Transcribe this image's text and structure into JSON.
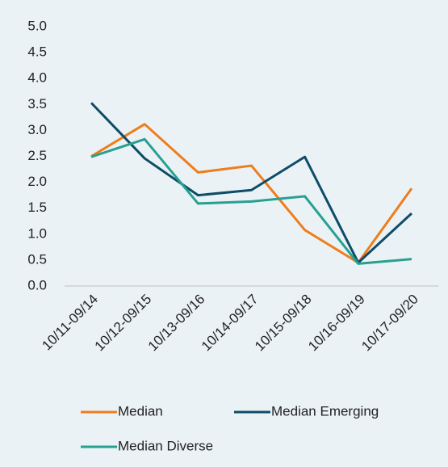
{
  "chart_data": {
    "type": "line",
    "categories": [
      "10/11-09/14",
      "10/12-09/15",
      "10/13-09/16",
      "10/14-09/17",
      "10/15-09/18",
      "10/16-09/19",
      "10/17-09/20"
    ],
    "series": [
      {
        "name": "Median",
        "color": "#ee7d1c",
        "values": [
          2.5,
          3.12,
          2.19,
          2.32,
          1.08,
          0.45,
          1.88
        ]
      },
      {
        "name": "Median Emerging",
        "color": "#0f4c68",
        "values": [
          3.53,
          2.46,
          1.75,
          1.85,
          2.49,
          0.45,
          1.4
        ]
      },
      {
        "name": "Median Diverse",
        "color": "#27a090",
        "values": [
          2.49,
          2.83,
          1.59,
          1.63,
          1.73,
          0.43,
          0.52
        ]
      }
    ],
    "ylim": [
      0,
      5
    ],
    "yticks": [
      {
        "value": 0,
        "label": "0.0"
      },
      0.5,
      {
        "value": 1,
        "label": "1.0"
      },
      1.5,
      {
        "value": 2,
        "label": "2.0"
      },
      2.5,
      {
        "value": 3,
        "label": "3.0"
      },
      3.5,
      {
        "value": 4,
        "label": "4.0"
      },
      4.5,
      {
        "value": 5,
        "label": "5.0"
      }
    ],
    "grid": false,
    "legend": "bottom"
  }
}
